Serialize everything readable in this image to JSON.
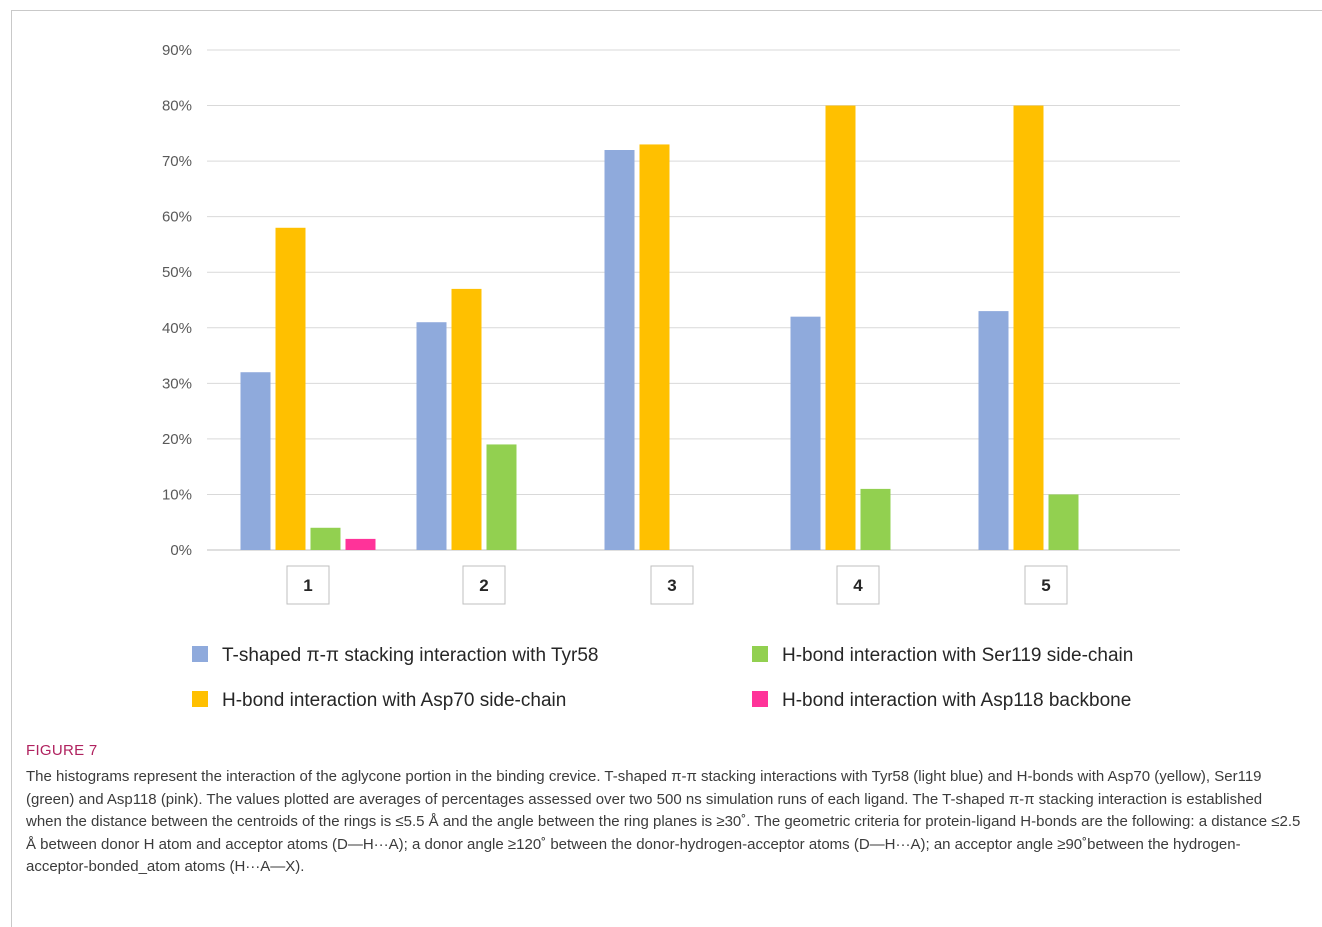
{
  "figure": {
    "label": "FIGURE 7",
    "caption": "The histograms represent the interaction of the aglycone portion in the binding crevice. T-shaped π-π stacking interactions with Tyr58 (light blue) and H-bonds with Asp70 (yellow), Ser119 (green) and Asp118 (pink). The values plotted are averages of percentages assessed over two 500 ns simulation runs of each ligand. The T-shaped π-π stacking interaction is established when the distance between the centroids of the rings is ≤5.5 Å and the angle between the ring planes is ≥30˚. The geometric criteria for protein-ligand H-bonds are the following: a distance ≤2.5 Å between donor H atom and acceptor atoms (D—H···A); a donor angle ≥120˚ between the donor-hydrogen-acceptor atoms (D—H···A); an acceptor angle ≥90˚between the hydrogen-acceptor-bonded_atom atoms (H···A—X)."
  },
  "chart_data": {
    "type": "bar",
    "title": "",
    "xlabel": "",
    "ylabel": "",
    "categories": [
      "1",
      "2",
      "3",
      "4",
      "5"
    ],
    "y_ticks": [
      "0%",
      "10%",
      "20%",
      "30%",
      "40%",
      "50%",
      "60%",
      "70%",
      "80%",
      "90%"
    ],
    "ylim": [
      0,
      90
    ],
    "grid": true,
    "legend_position": "bottom",
    "series": [
      {
        "name": "T-shaped π-π stacking interaction with Tyr58",
        "color": "#8faadc",
        "values": [
          32,
          41,
          72,
          42,
          43
        ]
      },
      {
        "name": "H-bond interaction with Asp70 side-chain",
        "color": "#ffc000",
        "values": [
          58,
          47,
          73,
          80,
          80
        ]
      },
      {
        "name": "H-bond interaction with Ser119 side-chain",
        "color": "#92d050",
        "values": [
          4,
          19,
          0,
          11,
          10
        ]
      },
      {
        "name": "H-bond interaction with Asp118 backbone",
        "color": "#ff3399",
        "values": [
          2,
          0,
          0,
          0,
          0
        ]
      }
    ]
  }
}
